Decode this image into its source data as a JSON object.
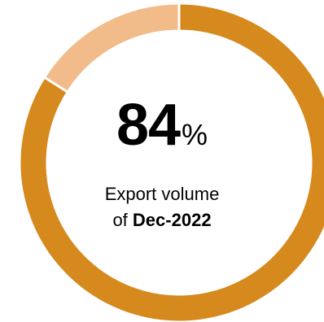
{
  "chart_data": {
    "type": "pie",
    "style": "donut",
    "values": [
      84,
      16
    ],
    "colors": [
      "#D6891C",
      "#F2BB8A"
    ],
    "center_value": "84",
    "center_unit": "%",
    "caption_line1": "Export volume",
    "caption_prefix": "of",
    "caption_period": "Dec-2022"
  }
}
